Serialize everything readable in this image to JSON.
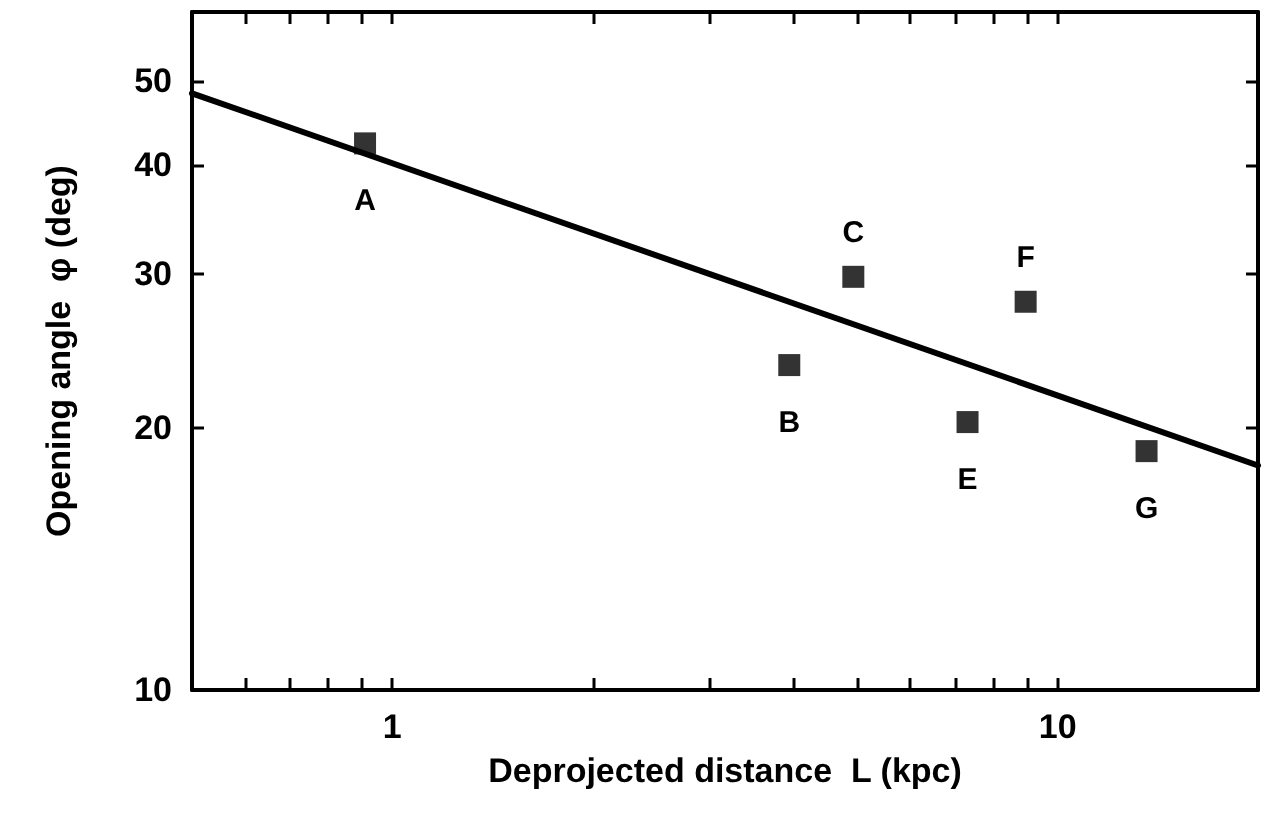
{
  "chart_data": {
    "type": "scatter",
    "xlabel": "Deprojected distance  L (kpc)",
    "ylabel": "Opening angle  φ (deg)",
    "log": "xy",
    "grid": false,
    "xlim": [
      0.5,
      20
    ],
    "ylim": [
      10,
      60
    ],
    "xticks": [
      {
        "value": 0.6,
        "label": null
      },
      {
        "value": 0.7,
        "label": null
      },
      {
        "value": 0.8,
        "label": null
      },
      {
        "value": 0.9,
        "label": null
      },
      1,
      {
        "value": 2,
        "label": null
      },
      {
        "value": 3,
        "label": null
      },
      {
        "value": 4,
        "label": null
      },
      {
        "value": 5,
        "label": null
      },
      {
        "value": 6,
        "label": null
      },
      {
        "value": 7,
        "label": null
      },
      {
        "value": 8,
        "label": null
      },
      {
        "value": 9,
        "label": null
      },
      10
    ],
    "yticks": [
      10,
      20,
      30,
      40,
      50
    ],
    "series": [
      {
        "marker": "square",
        "color": "#000000",
        "x": [
          0.91,
          3.95,
          4.93,
          7.32,
          8.95,
          13.6
        ],
        "values": [
          42.4,
          23.6,
          29.8,
          20.3,
          27.9,
          18.8
        ]
      },
      {
        "type": "line",
        "marker": "none",
        "line_style": "solid",
        "color": "#000000",
        "x": [
          0.5,
          20
        ],
        "values": [
          48.4,
          18.1
        ]
      }
    ],
    "annotations": [
      {
        "text": "A",
        "x": 0.91,
        "y": 42.4
      },
      {
        "text": "B",
        "x": 3.95,
        "y": 23.6
      },
      {
        "text": "C",
        "x": 4.93,
        "y": 29.8
      },
      {
        "text": "E",
        "x": 7.32,
        "y": 20.3
      },
      {
        "text": "F",
        "x": 8.95,
        "y": 27.9
      },
      {
        "text": "G",
        "x": 13.6,
        "y": 18.8
      }
    ]
  }
}
